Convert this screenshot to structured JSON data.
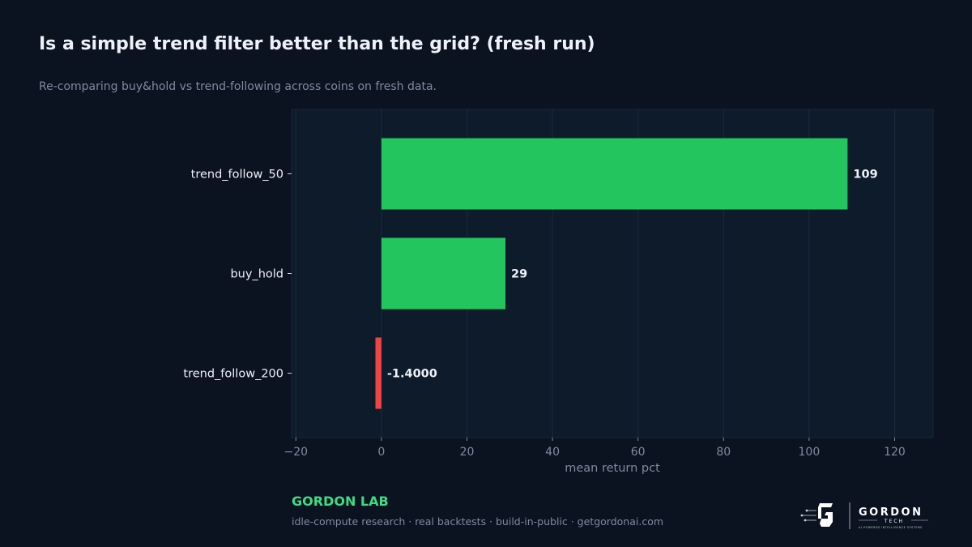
{
  "header": {
    "title": "Is a simple trend filter better than the grid? (fresh run)",
    "subtitle": "Re-comparing buy&hold vs trend-following across coins on fresh data."
  },
  "footer": {
    "brand": "GORDON LAB",
    "tagline": "idle-compute research · real backtests · build-in-public · getgordonai.com",
    "logo_icon": "gordon-tech-g-mark-icon",
    "logo_wordmark": "GORDON",
    "logo_sub": "TECH",
    "logo_small": "AI-POWERED INTELLIGENCE SYSTEMS"
  },
  "colors": {
    "background": "#0b1220",
    "plot_background": "#0e1b2b",
    "positive": "#22c55e",
    "negative": "#ef4444",
    "text": "#eef2f8",
    "muted": "#7f8ba0",
    "brand": "#3ddc84"
  },
  "chart_data": {
    "type": "bar",
    "orientation": "horizontal",
    "categories": [
      "trend_follow_50",
      "buy_hold",
      "trend_follow_200"
    ],
    "values": [
      109,
      29,
      -1.4
    ],
    "value_labels": [
      "109",
      "29",
      "-1.4000"
    ],
    "xlabel": "mean return pct",
    "ylabel": "",
    "xlim": [
      -21,
      129
    ],
    "xticks": [
      -20,
      0,
      20,
      40,
      60,
      80,
      100,
      120
    ],
    "xtick_labels": [
      "−20",
      "0",
      "20",
      "40",
      "60",
      "80",
      "100",
      "120"
    ],
    "grid": "vertical",
    "legend": "none"
  }
}
